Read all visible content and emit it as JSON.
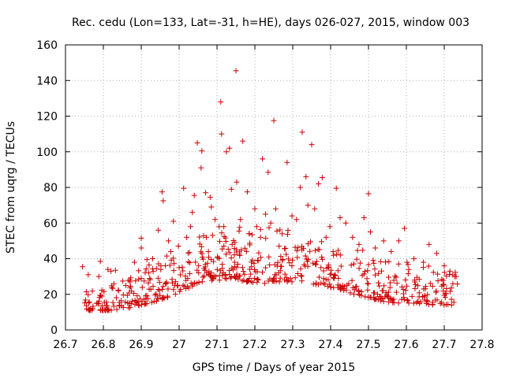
{
  "chart_data": {
    "type": "scatter",
    "title": "Rec. cedu (Lon=133, Lat=-31, h=HE), days 026-027, 2015, window 003",
    "xlabel": "GPS time / Days of year 2015",
    "ylabel": "STEC from uqrg / TECUs",
    "xlim": [
      26.7,
      27.8
    ],
    "ylim": [
      0,
      160
    ],
    "xticks": [
      "26.7",
      "26.8",
      "26.9",
      "27",
      "27.1",
      "27.2",
      "27.3",
      "27.4",
      "27.5",
      "27.6",
      "27.7",
      "27.8"
    ],
    "yticks": [
      "0",
      "20",
      "40",
      "60",
      "80",
      "100",
      "120",
      "140",
      "160"
    ],
    "marker": "+",
    "color": "#cc0000",
    "series": [
      {
        "name": "STEC",
        "points": [
          [
            26.745,
            35.5
          ],
          [
            26.76,
            31.0
          ],
          [
            26.792,
            38.5
          ],
          [
            26.812,
            34.0
          ],
          [
            26.82,
            33.0
          ],
          [
            26.832,
            33.5
          ],
          [
            26.882,
            38.0
          ],
          [
            26.9,
            51.5
          ],
          [
            26.915,
            39.5
          ],
          [
            26.93,
            40.0
          ],
          [
            26.945,
            56.0
          ],
          [
            26.955,
            77.5
          ],
          [
            26.958,
            72.5
          ],
          [
            26.972,
            50.0
          ],
          [
            26.985,
            61.0
          ],
          [
            27.012,
            79.5
          ],
          [
            27.035,
            66.0
          ],
          [
            27.048,
            105.0
          ],
          [
            27.058,
            91.0
          ],
          [
            27.06,
            100.5
          ],
          [
            27.07,
            77.0
          ],
          [
            27.082,
            74.5
          ],
          [
            27.085,
            69.0
          ],
          [
            27.11,
            128.0
          ],
          [
            27.112,
            110.0
          ],
          [
            27.125,
            100.0
          ],
          [
            27.133,
            102.0
          ],
          [
            27.138,
            79.0
          ],
          [
            27.15,
            145.5
          ],
          [
            27.152,
            83.0
          ],
          [
            27.168,
            106.0
          ],
          [
            27.18,
            77.5
          ],
          [
            27.2,
            68.0
          ],
          [
            27.22,
            96.0
          ],
          [
            27.235,
            88.5
          ],
          [
            27.25,
            117.5
          ],
          [
            27.285,
            94.0
          ],
          [
            27.325,
            111.0
          ],
          [
            27.335,
            86.0
          ],
          [
            27.35,
            104.0
          ],
          [
            27.368,
            82.0
          ],
          [
            27.378,
            85.5
          ],
          [
            27.415,
            79.5
          ],
          [
            27.5,
            76.5
          ],
          [
            26.788,
            30.0
          ],
          [
            26.84,
            22.0
          ],
          [
            26.87,
            28.0
          ],
          [
            26.9,
            46.0
          ],
          [
            26.92,
            32.0
          ],
          [
            26.952,
            36.0
          ],
          [
            26.978,
            44.0
          ],
          [
            27.0,
            35.0
          ],
          [
            27.02,
            52.0
          ],
          [
            27.04,
            75.5
          ],
          [
            27.03,
            58.0
          ],
          [
            27.072,
            52.0
          ],
          [
            27.095,
            62.0
          ],
          [
            27.118,
            58.0
          ],
          [
            27.14,
            48.0
          ],
          [
            27.162,
            62.0
          ],
          [
            27.185,
            54.0
          ],
          [
            27.205,
            58.0
          ],
          [
            27.215,
            52.0
          ],
          [
            27.228,
            65.0
          ],
          [
            27.242,
            60.0
          ],
          [
            27.255,
            68.0
          ],
          [
            27.272,
            54.0
          ],
          [
            27.298,
            64.0
          ],
          [
            27.31,
            62.0
          ],
          [
            27.32,
            80.0
          ],
          [
            27.34,
            70.0
          ],
          [
            27.358,
            68.0
          ],
          [
            27.388,
            52.0
          ],
          [
            27.398,
            58.0
          ],
          [
            27.425,
            63.0
          ],
          [
            27.44,
            60.0
          ],
          [
            27.458,
            52.0
          ],
          [
            27.475,
            48.0
          ],
          [
            27.488,
            63.0
          ],
          [
            27.505,
            55.0
          ],
          [
            27.518,
            46.0
          ],
          [
            27.54,
            50.0
          ],
          [
            27.56,
            44.0
          ],
          [
            27.58,
            50.0
          ],
          [
            27.595,
            57.0
          ],
          [
            27.62,
            40.0
          ],
          [
            27.645,
            38.0
          ],
          [
            27.66,
            48.0
          ],
          [
            27.68,
            43.0
          ],
          [
            27.7,
            36.0
          ],
          [
            27.715,
            33.0
          ],
          [
            27.728,
            30.0
          ]
        ]
      }
    ]
  }
}
